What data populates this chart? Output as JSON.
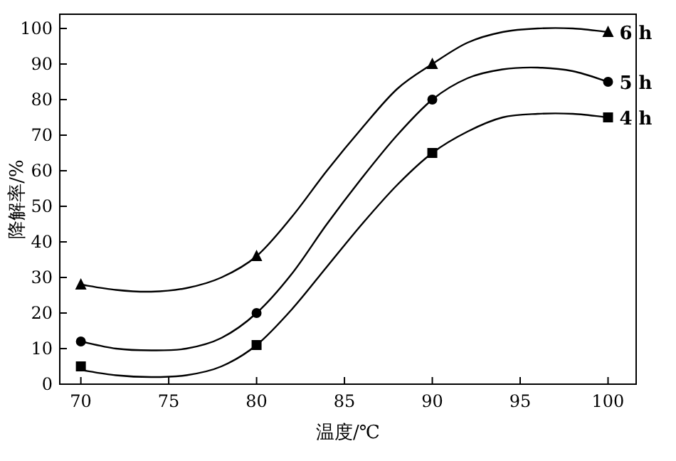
{
  "chart_data": {
    "type": "scatter",
    "xlabel": "温度/℃",
    "ylabel": "降解率/%",
    "xlim": [
      68.8,
      101.6
    ],
    "ylim": [
      0,
      104
    ],
    "xticks": [
      70,
      75,
      80,
      85,
      90,
      95,
      100
    ],
    "yticks": [
      0,
      10,
      20,
      30,
      40,
      50,
      60,
      70,
      80,
      90,
      100
    ],
    "grid": false,
    "legend": false,
    "series": [
      {
        "name": "6 h",
        "type": "scatter",
        "marker": "triangle",
        "color": "#000000",
        "x": [
          70,
          80,
          90,
          100
        ],
        "values": [
          28,
          36,
          90,
          99
        ]
      },
      {
        "name": "5 h",
        "type": "scatter",
        "marker": "circle",
        "color": "#000000",
        "x": [
          70,
          80,
          90,
          100
        ],
        "values": [
          12,
          20,
          80,
          85
        ]
      },
      {
        "name": "4 h",
        "type": "scatter",
        "marker": "square",
        "color": "#000000",
        "x": [
          70,
          80,
          90,
          100
        ],
        "values": [
          5,
          11,
          65,
          75
        ]
      },
      {
        "type": "line",
        "marker": "none",
        "line_style": "solid",
        "color": "#000000",
        "x": [
          70,
          72,
          74,
          76,
          78,
          80,
          82,
          84,
          86,
          88,
          90,
          92,
          94,
          96,
          98,
          100
        ],
        "values": [
          28,
          26.5,
          26,
          27,
          30,
          36,
          47,
          60,
          72,
          83,
          90,
          96,
          99,
          100,
          100,
          99
        ]
      },
      {
        "type": "line",
        "marker": "none",
        "line_style": "solid",
        "color": "#000000",
        "x": [
          70,
          72,
          74,
          76,
          78,
          80,
          82,
          84,
          86,
          88,
          90,
          92,
          94,
          96,
          98,
          100
        ],
        "values": [
          12,
          10,
          9.5,
          10,
          13,
          20,
          31,
          45,
          58,
          70,
          80,
          86,
          88.5,
          89,
          88,
          85
        ]
      },
      {
        "type": "line",
        "marker": "none",
        "line_style": "solid",
        "color": "#000000",
        "x": [
          70,
          72,
          74,
          76,
          78,
          80,
          82,
          84,
          86,
          88,
          90,
          92,
          94,
          96,
          98,
          100
        ],
        "values": [
          4,
          2.5,
          2,
          2.5,
          5,
          11,
          21,
          33,
          45,
          56,
          65,
          71,
          75,
          76,
          76,
          75
        ]
      }
    ]
  }
}
